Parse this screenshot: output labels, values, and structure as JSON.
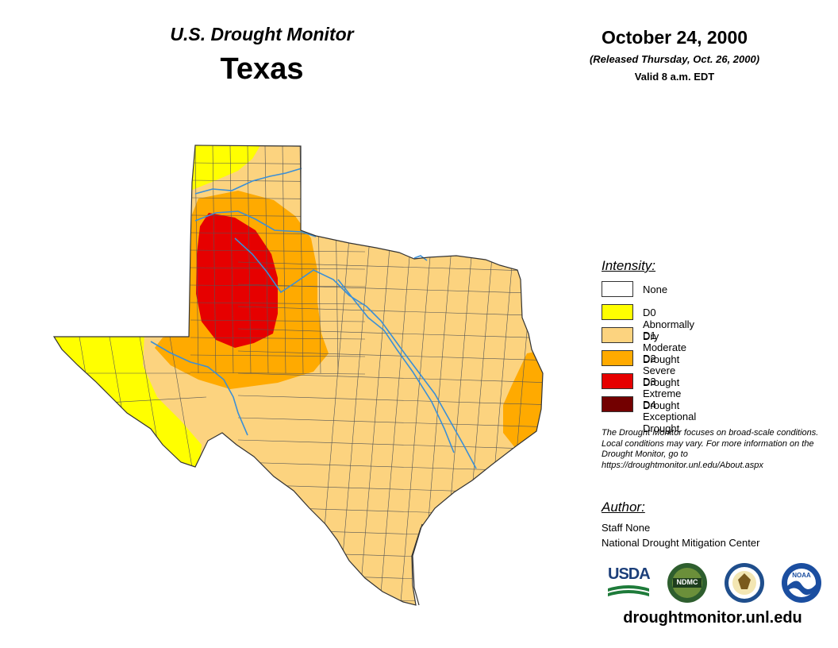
{
  "header": {
    "title_line1": "U.S. Drought Monitor",
    "title_line2": "Texas",
    "date": "October 24, 2000",
    "released": "(Released Thursday, Oct. 26, 2000)",
    "valid": "Valid 8 a.m. EDT"
  },
  "legend": {
    "heading": "Intensity:",
    "items": [
      {
        "label": "None",
        "color": "#ffffff"
      },
      {
        "label": "D0 Abnormally Dry",
        "color": "#ffff00"
      },
      {
        "label": "D1 Moderate Drought",
        "color": "#fcd37f"
      },
      {
        "label": "D2 Severe Drought",
        "color": "#ffaa00"
      },
      {
        "label": "D3 Extreme Drought",
        "color": "#e60000"
      },
      {
        "label": "D4 Exceptional Drought",
        "color": "#730000"
      }
    ]
  },
  "note": "The Drought Monitor focuses on broad-scale conditions. Local conditions may vary. For more information on the Drought Monitor, go to https://droughtmonitor.unl.edu/About.aspx",
  "author": {
    "heading": "Author:",
    "name": "Staff None",
    "organization": "National Drought Mitigation Center"
  },
  "logos": {
    "usda": "USDA",
    "ndmc": "NDMC",
    "noaa": "NOAA"
  },
  "footer_url": "droughtmonitor.unl.edu",
  "colors": {
    "river": "#3b8fd6",
    "county_line": "#555555"
  }
}
